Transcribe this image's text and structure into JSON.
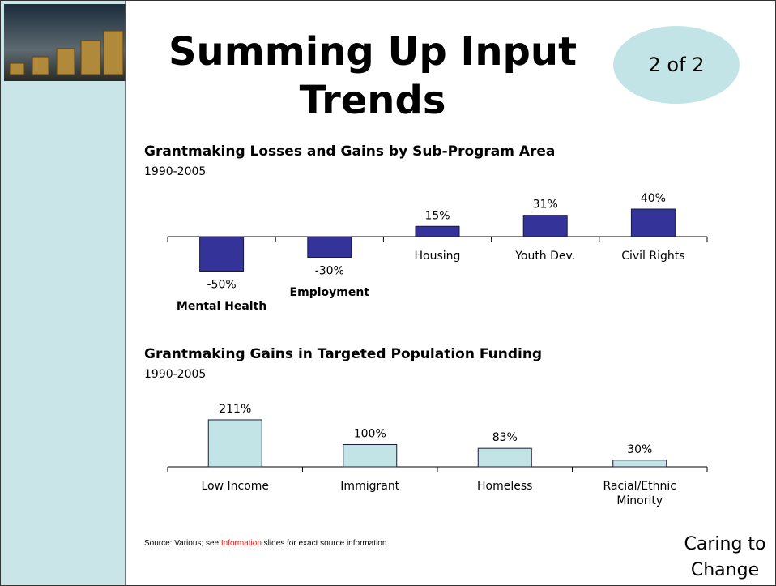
{
  "slide": {
    "title": "Summing Up Input Trends",
    "badge": "2 of 2",
    "source": [
      "Source:  Various; see ",
      "Information",
      " slides for exact source information."
    ],
    "footer": "Caring to Change"
  },
  "chart_data": [
    {
      "type": "bar",
      "title": "Grantmaking Losses and Gains by Sub-Program Area",
      "subtitle": "1990-2005",
      "categories": [
        "Mental Health",
        "Employment",
        "Housing",
        "Youth Dev.",
        "Civil Rights"
      ],
      "values": [
        -50,
        -30,
        15,
        31,
        40
      ],
      "value_labels": [
        "-50%",
        "-30%",
        "15%",
        "31%",
        "40%"
      ],
      "color": "#333399"
    },
    {
      "type": "bar",
      "title": "Grantmaking Gains in Targeted Population Funding",
      "subtitle": "1990-2005",
      "categories": [
        "Low Income",
        "Immigrant",
        "Homeless",
        "Racial/Ethnic Minority"
      ],
      "values": [
        211,
        100,
        83,
        30
      ],
      "value_labels": [
        "211%",
        "100%",
        "83%",
        "30%"
      ],
      "color": "#c2e4e6"
    }
  ]
}
